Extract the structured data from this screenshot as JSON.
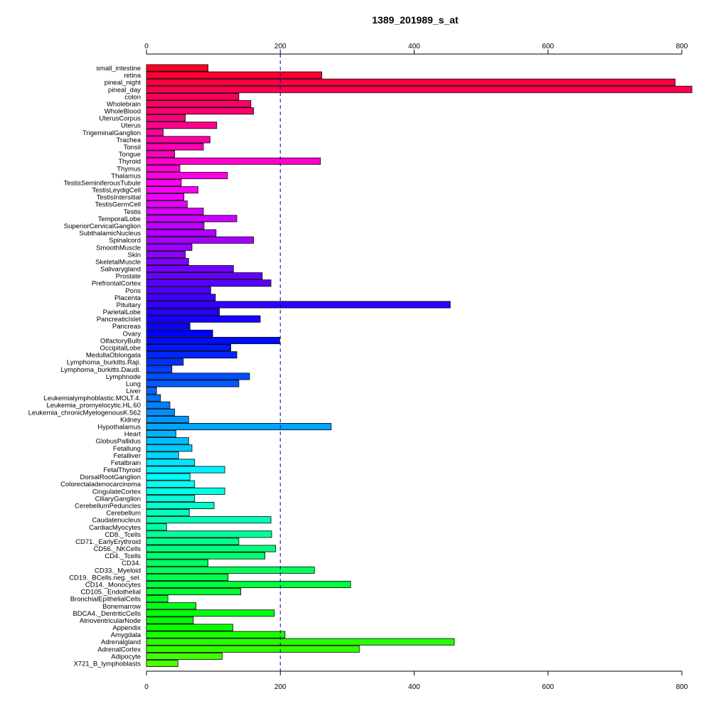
{
  "chart_data": {
    "type": "bar",
    "orientation": "horizontal",
    "title": "1389_201989_s_at",
    "xlabel": "",
    "ylabel": "",
    "xlim": [
      0,
      800
    ],
    "xticks": [
      0,
      200,
      400,
      600,
      800
    ],
    "reference_line": 200,
    "axes": "top-and-bottom",
    "grid": false,
    "categories": [
      "small_intestine",
      "retina",
      "pineal_night",
      "pineal_day",
      "colon",
      "Wholebrain",
      "WholeBlood",
      "UterusCorpus",
      "Uterus",
      "TrigeminalGanglion",
      "Trachea",
      "Tonsil",
      "Tongue",
      "Thyroid",
      "Thymus",
      "Thalamus",
      "TestisSeminiferousTubule",
      "TestisLeydigCell",
      "TestisIntersitial",
      "TestisGermCell",
      "Testis",
      "TemporalLobe",
      "SuperiorCervicalGanglion",
      "SubthalamicNucleus",
      "Spinalcord",
      "SmoothMuscle",
      "Skin",
      "SkeletalMuscle",
      "Salivarygland",
      "Prostate",
      "PrefrontalCortex",
      "Pons",
      "Placenta",
      "Pituitary",
      "ParietalLobe",
      "PancreaticIslet",
      "Pancreas",
      "Ovary",
      "OlfactoryBulb",
      "OccipitalLobe",
      "MedullaOblongata",
      "Lymphoma_burkitts.Raji.",
      "Lymphoma_burkitts.Daudi.",
      "Lymphnode",
      "Lung",
      "Liver",
      "Leukemialymphoblastic.MOLT.4.",
      "Leukemia_promyelocytic.HL.60",
      "Leukemia_chronicMyelogenousK.562",
      "Kidney",
      "Hypothalamus",
      "Heart",
      "GlobusPallidus",
      "Fetallung",
      "Fetalliver",
      "Fetalbrain",
      "FetalThyroid",
      "DorsalRootGanglion",
      "Colorectaladenocarcinoma",
      "CingulateCortex",
      "CiliaryGanglion",
      "CerebellumPeduncles",
      "Cerebellum",
      "Caudatenucleus",
      "CardiacMyocytes",
      "CD8._Tcells",
      "CD71._EarlyErythroid",
      "CD56._NKCells",
      "CD4._Tcells",
      "CD34.",
      "CD33._Myeloid",
      "CD19._BCells.neg._sel.",
      "CD14._Monocytes",
      "CD105._Endothelial",
      "BronchialEpithelialCells",
      "Bonemarrow",
      "BDCA4._DentriticCells",
      "AtrioventricularNode",
      "Appendix",
      "Amygdala",
      "Adrenalgland",
      "AdrenalCortex",
      "Adipocyte",
      "X721_B_lymphoblasts"
    ],
    "values": [
      92,
      262,
      790,
      815,
      138,
      156,
      160,
      58,
      105,
      25,
      95,
      85,
      42,
      260,
      50,
      121,
      52,
      77,
      56,
      61,
      85,
      135,
      86,
      104,
      160,
      68,
      58,
      63,
      130,
      173,
      186,
      96,
      103,
      454,
      109,
      170,
      65,
      99,
      199,
      126,
      135,
      55,
      38,
      154,
      138,
      15,
      21,
      35,
      42,
      63,
      276,
      44,
      63,
      68,
      48,
      72,
      117,
      65,
      72,
      117,
      72,
      101,
      64,
      186,
      30,
      187,
      138,
      193,
      177,
      92,
      251,
      122,
      305,
      141,
      32,
      74,
      191,
      70,
      129,
      207,
      460,
      318,
      113,
      47
    ],
    "bar_colors": [
      "#FF0026",
      "#FF0032",
      "#FF003F",
      "#FF004C",
      "#FF0059",
      "#FF0065",
      "#FF0072",
      "#FF007F",
      "#FF008B",
      "#FF0098",
      "#FF00A5",
      "#FF00B2",
      "#FF00BE",
      "#FF00CB",
      "#FF00D8",
      "#FF00E5",
      "#FF00F1",
      "#FF00FE",
      "#F200FF",
      "#E500FF",
      "#D800FF",
      "#CB00FF",
      "#BF00FF",
      "#B200FF",
      "#A500FF",
      "#9800FF",
      "#8B00FF",
      "#7F00FF",
      "#7200FF",
      "#6500FF",
      "#5800FF",
      "#4C00FF",
      "#3F00FF",
      "#3200FF",
      "#2500FF",
      "#1800FF",
      "#0C00FF",
      "#0000FF",
      "#000CFF",
      "#0018FF",
      "#0025FF",
      "#0032FF",
      "#003FFF",
      "#004CFF",
      "#0058FF",
      "#0065FF",
      "#0072FF",
      "#007FFF",
      "#008BFF",
      "#0098FF",
      "#00A5FF",
      "#00B2FF",
      "#00BFFF",
      "#00CBFF",
      "#00D8FF",
      "#00E5FF",
      "#00F2FF",
      "#00FFFE",
      "#00FFF1",
      "#00FFE5",
      "#00FFD8",
      "#00FFCB",
      "#00FFBE",
      "#00FFB2",
      "#00FFA5",
      "#00FF98",
      "#00FF8B",
      "#00FF7F",
      "#00FF72",
      "#00FF65",
      "#00FF59",
      "#00FF4C",
      "#00FF3F",
      "#00FF32",
      "#00FF26",
      "#00FF19",
      "#00FF0C",
      "#00FF00",
      "#0CFF00",
      "#19FF00",
      "#26FF00",
      "#32FF00",
      "#3FFF00",
      "#4CFF00"
    ]
  }
}
